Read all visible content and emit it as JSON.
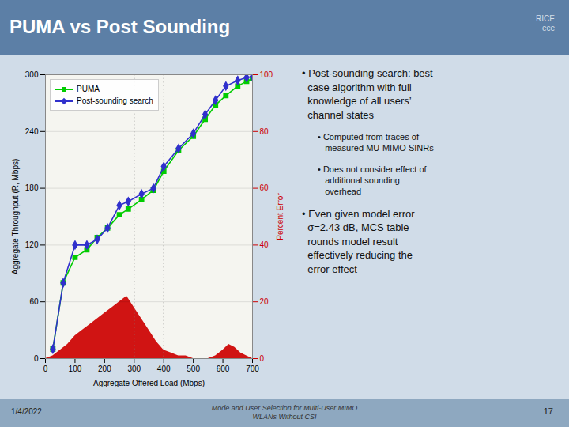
{
  "chart_data": {
    "type": "line",
    "title": "PUMA vs Post Sounding",
    "x": [
      25,
      60,
      100,
      140,
      175,
      210,
      250,
      280,
      325,
      365,
      400,
      450,
      500,
      540,
      575,
      610,
      650,
      680,
      700
    ],
    "series": [
      {
        "name": "PUMA",
        "color": "#00cc00",
        "marker": "square",
        "values": [
          10,
          80,
          107,
          115,
          128,
          138,
          152,
          158,
          168,
          178,
          198,
          220,
          235,
          253,
          268,
          278,
          288,
          293,
          296
        ]
      },
      {
        "name": "Post-sounding search",
        "color": "#3030cc",
        "marker": "diamond",
        "values": [
          10,
          80,
          120,
          120,
          126,
          138,
          162,
          166,
          174,
          180,
          203,
          222,
          238,
          258,
          273,
          288,
          294,
          297,
          298
        ]
      },
      {
        "type": "area",
        "axis": "y2",
        "color": "#cc0000",
        "x": [
          0,
          25,
          50,
          75,
          100,
          125,
          150,
          175,
          200,
          225,
          250,
          275,
          300,
          325,
          350,
          375,
          400,
          425,
          450,
          475,
          500,
          525,
          550,
          575,
          600,
          620,
          640,
          660,
          680,
          700
        ],
        "values": [
          0,
          1,
          3,
          5,
          8,
          10,
          12,
          14,
          16,
          18,
          20,
          22,
          18,
          14,
          10,
          6,
          3,
          2,
          1,
          1,
          0,
          0,
          0,
          1,
          3,
          5,
          4,
          2,
          1,
          0
        ]
      }
    ],
    "xlim": [
      0,
      700
    ],
    "xticks": [
      0,
      100,
      200,
      300,
      400,
      500,
      600,
      700
    ],
    "ylim": [
      0,
      300
    ],
    "yticks": [
      0,
      60,
      120,
      180,
      240,
      300
    ],
    "y2lim": [
      0,
      100
    ],
    "y2ticks": [
      0,
      20,
      40,
      60,
      80,
      100
    ],
    "xlabel": "Aggregate Offered Load (Mbps)",
    "ylabel": "Aggregate Throughput (R, Mbps)",
    "y2label": "Percent Error",
    "vlines": [
      300,
      400
    ],
    "grid": true,
    "legend": "upper left",
    "annotations": [
      "RICE\nece",
      "1/4/2022",
      "Mode and User Selection for Multi-User MIMO\nWLANs Without CSI",
      "17",
      "• Post-sounding search: best\n  case algorithm with full\n  knowledge of all users’\n  channel states",
      "• Computed from traces of\n   measured MU-MIMO SINRs",
      "• Does not consider effect of\n   additional sounding\n   overhead",
      "• Even given model error\n  σ=2.43 dB, MCS table\n  rounds model result\n  effectively reducing the\n  error effect"
    ]
  }
}
